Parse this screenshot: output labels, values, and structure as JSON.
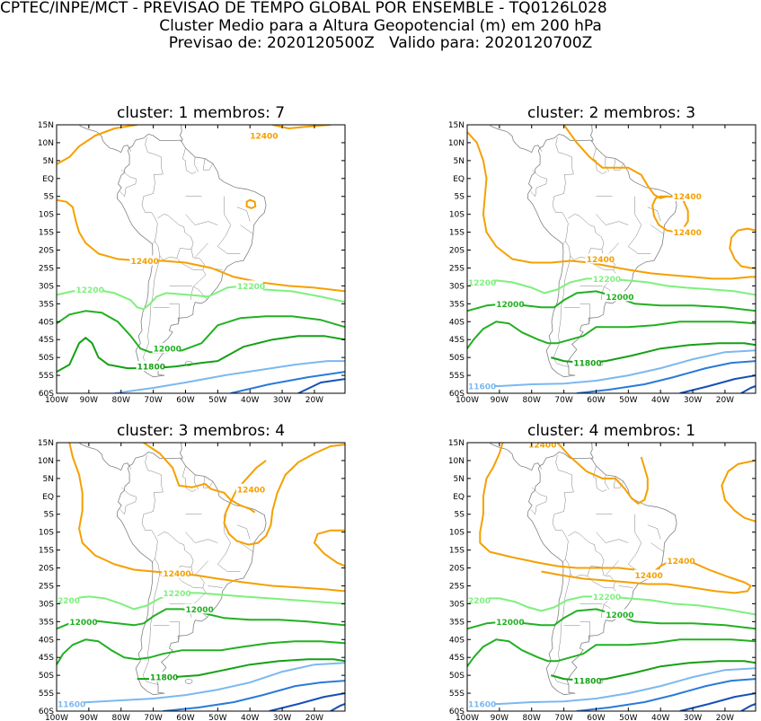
{
  "header": {
    "line1": "CPTEC/INPE/MCT - PREVISAO DE TEMPO GLOBAL POR ENSEMBLE - TQ0126L028",
    "line2": "Cluster Medio para a Altura Geopotencial (m) em 200 hPa",
    "line3": "Previsao de: 2020120500Z   Valido para: 2020120700Z"
  },
  "lat_ticks": [
    "15N",
    "10N",
    "5N",
    "EQ",
    "5S",
    "10S",
    "15S",
    "20S",
    "25S",
    "30S",
    "35S",
    "40S",
    "45S",
    "50S",
    "55S",
    "60S"
  ],
  "lon_ticks": [
    "100W",
    "90W",
    "80W",
    "70W",
    "60W",
    "50W",
    "40W",
    "30W",
    "20W"
  ],
  "colors": {
    "c12400": "#f5a000",
    "c12200": "#7ef07e",
    "c12000": "#22b022",
    "c11800": "#15a015",
    "c11600": "#7cb8f0",
    "c11400": "#2a7ad8",
    "c11200": "#1550b8",
    "coast": "#808080"
  },
  "panels": [
    {
      "title": "cluster: 1   membros: 7",
      "labels": [
        {
          "text": "12400",
          "lon": -40,
          "lat": 12,
          "level": "c12400"
        },
        {
          "text": "12400",
          "lon": -77,
          "lat": -23,
          "level": "c12400"
        },
        {
          "text": "12200",
          "lon": -94,
          "lat": -31,
          "level": "c12200"
        },
        {
          "text": "12200",
          "lon": -44,
          "lat": -30,
          "level": "c12200"
        },
        {
          "text": "12000",
          "lon": -70,
          "lat": -47.5,
          "level": "c12000"
        },
        {
          "text": "11800",
          "lon": -75,
          "lat": -52.5,
          "level": "c11800"
        }
      ]
    },
    {
      "title": "cluster: 2   membros: 3",
      "labels": [
        {
          "text": "12400",
          "lon": -36,
          "lat": -5,
          "level": "c12400"
        },
        {
          "text": "12400",
          "lon": -36,
          "lat": -15,
          "level": "c12400"
        },
        {
          "text": "12400",
          "lon": -63,
          "lat": -22.5,
          "level": "c12400"
        },
        {
          "text": "12200",
          "lon": -100,
          "lat": -29,
          "level": "c12200"
        },
        {
          "text": "12200",
          "lon": -61,
          "lat": -28,
          "level": "c12200"
        },
        {
          "text": "12000",
          "lon": -91,
          "lat": -35,
          "level": "c12000"
        },
        {
          "text": "12000",
          "lon": -57,
          "lat": -33,
          "level": "c12000"
        },
        {
          "text": "11800",
          "lon": -67,
          "lat": -51.5,
          "level": "c11800"
        },
        {
          "text": "11600",
          "lon": -100,
          "lat": -58,
          "level": "c11600"
        }
      ]
    },
    {
      "title": "cluster: 3   membros: 4",
      "labels": [
        {
          "text": "12400",
          "lon": -44,
          "lat": 2,
          "level": "c12400"
        },
        {
          "text": "12400",
          "lon": -67,
          "lat": -21.5,
          "level": "c12400"
        },
        {
          "text": "2200",
          "lon": -100,
          "lat": -29,
          "level": "c12200"
        },
        {
          "text": "12200",
          "lon": -67,
          "lat": -27,
          "level": "c12200"
        },
        {
          "text": "12000",
          "lon": -60,
          "lat": -31.5,
          "level": "c12000"
        },
        {
          "text": "12000",
          "lon": -96,
          "lat": -35,
          "level": "c12000"
        },
        {
          "text": "11800",
          "lon": -71,
          "lat": -50.5,
          "level": "c11800"
        },
        {
          "text": "11600",
          "lon": -100,
          "lat": -58,
          "level": "c11600"
        }
      ]
    },
    {
      "title": "cluster: 4   membros: 1",
      "labels": [
        {
          "text": "12400",
          "lon": -81,
          "lat": 14.5,
          "level": "c12400"
        },
        {
          "text": "12400",
          "lon": -38,
          "lat": -18,
          "level": "c12400"
        },
        {
          "text": "12400",
          "lon": -48,
          "lat": -22,
          "level": "c12400"
        },
        {
          "text": "2200",
          "lon": -100,
          "lat": -29,
          "level": "c12200"
        },
        {
          "text": "12200",
          "lon": -61,
          "lat": -28,
          "level": "c12200"
        },
        {
          "text": "12000",
          "lon": -91,
          "lat": -35,
          "level": "c12000"
        },
        {
          "text": "12000",
          "lon": -57,
          "lat": -33,
          "level": "c12000"
        },
        {
          "text": "11800",
          "lon": -67,
          "lat": -51.5,
          "level": "c11800"
        },
        {
          "text": "11600",
          "lon": -100,
          "lat": -58,
          "level": "c11600"
        }
      ]
    }
  ]
}
